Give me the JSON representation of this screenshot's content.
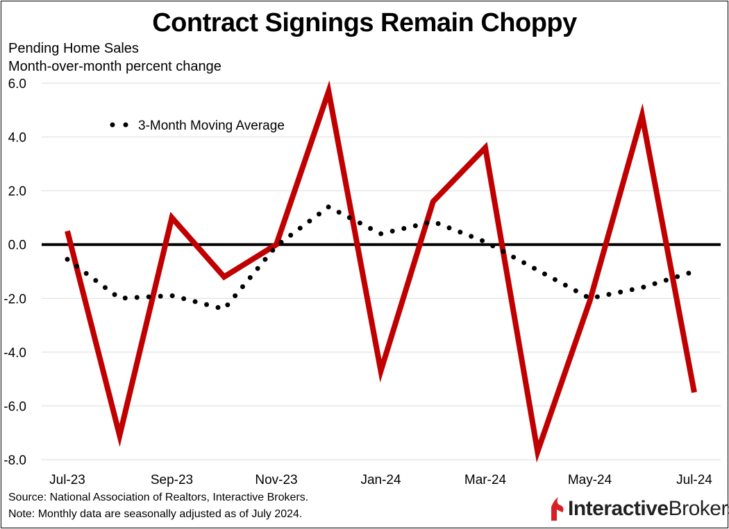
{
  "title": "Contract Signings Remain Choppy",
  "subtitle_line1": "Pending Home Sales",
  "subtitle_line2": "Month-over-month percent change",
  "footer_source": "Source: National Association of Realtors, Interactive Brokers.",
  "footer_note": "Note: Monthly data are seasonally adjusted as of July 2024.",
  "logo": {
    "text_bold": "Interactive",
    "text_regular": "Brokers",
    "icon": "interactive-brokers-flame-icon",
    "color": "#d81f26"
  },
  "chart_data": {
    "type": "line",
    "x": [
      "Jul-23",
      "Aug-23",
      "Sep-23",
      "Oct-23",
      "Nov-23",
      "Dec-23",
      "Jan-24",
      "Feb-24",
      "Mar-24",
      "Apr-24",
      "May-24",
      "Jun-24",
      "Jul-24"
    ],
    "x_tick_labels": [
      "Jul-23",
      "Sep-23",
      "Nov-23",
      "Jan-24",
      "Mar-24",
      "May-24",
      "Jul-24"
    ],
    "y_tick_labels": [
      "6.0",
      "4.0",
      "2.0",
      "0.0",
      "-2.0",
      "-4.0",
      "-6.0",
      "-8.0"
    ],
    "ylim": [
      -8,
      6
    ],
    "grid": true,
    "series": [
      {
        "values": [
          0.5,
          -7.1,
          1.0,
          -1.2,
          0.0,
          5.7,
          -4.7,
          1.6,
          3.6,
          -7.7,
          -2.1,
          4.8,
          -5.5
        ],
        "color": "#c00000",
        "style": "solid"
      },
      {
        "name": "3-Month Moving Average",
        "values": [
          -0.55,
          -2.0,
          -1.9,
          -2.4,
          -0.05,
          1.4,
          0.4,
          0.85,
          0.1,
          -0.95,
          -2.0,
          -1.6,
          -1.0
        ],
        "color": "#000000",
        "style": "dotted"
      }
    ],
    "legend": {
      "label": "3-Month Moving Average",
      "placement": "top-left"
    }
  }
}
